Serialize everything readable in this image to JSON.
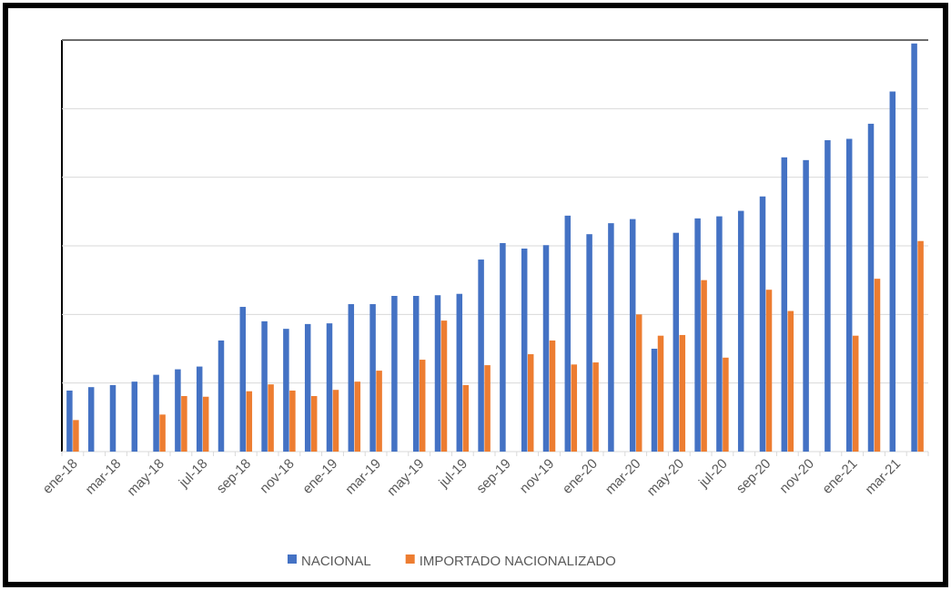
{
  "chart_data": {
    "type": "bar",
    "categories": [
      "ene-18",
      null,
      "mar-18",
      null,
      "may-18",
      null,
      "jul-18",
      null,
      "sep-18",
      null,
      "nov-18",
      null,
      "ene-19",
      null,
      "mar-19",
      null,
      "may-19",
      null,
      "jul-19",
      null,
      "sep-19",
      null,
      "nov-19",
      null,
      "ene-20",
      null,
      "mar-20",
      null,
      "may-20",
      null,
      "jul-20",
      null,
      "sep-20",
      null,
      "nov-20",
      null,
      "ene-21",
      null,
      "mar-21",
      null
    ],
    "series": [
      {
        "name": "NACIONAL",
        "color": "#4472c4",
        "values": [
          0.89,
          0.94,
          0.97,
          1.02,
          1.12,
          1.2,
          1.24,
          1.62,
          2.11,
          1.9,
          1.79,
          1.86,
          1.87,
          2.15,
          2.15,
          2.27,
          2.27,
          2.28,
          2.3,
          2.8,
          3.04,
          2.96,
          3.01,
          3.44,
          3.17,
          3.33,
          3.39,
          1.5,
          3.19,
          3.4,
          3.43,
          3.51,
          3.72,
          4.29,
          4.25,
          4.54,
          4.56,
          4.78,
          5.25,
          5.95
        ]
      },
      {
        "name": "IMPORTADO NACIONALIZADO",
        "color": "#ed7d31",
        "values": [
          0.46,
          null,
          null,
          null,
          0.54,
          0.81,
          0.8,
          null,
          0.88,
          0.98,
          0.89,
          0.81,
          0.9,
          1.02,
          1.18,
          null,
          1.34,
          1.91,
          0.97,
          1.26,
          null,
          1.42,
          1.62,
          1.27,
          1.3,
          null,
          2.0,
          1.69,
          1.7,
          2.5,
          1.37,
          null,
          2.36,
          2.05,
          null,
          null,
          1.69,
          2.52,
          null,
          3.07
        ]
      }
    ],
    "ylim": [
      0,
      6
    ],
    "yticks": [
      0,
      1,
      2,
      3,
      4,
      5,
      6
    ],
    "grid": true,
    "legend": "bottom"
  }
}
